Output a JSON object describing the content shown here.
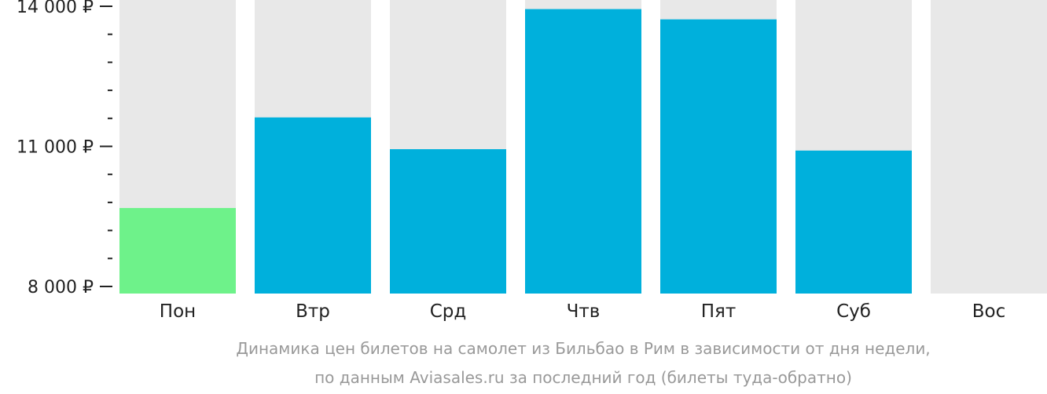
{
  "chart_data": {
    "type": "bar",
    "categories": [
      "Пон",
      "Втр",
      "Срд",
      "Чтв",
      "Пят",
      "Суб",
      "Вос"
    ],
    "values": [
      9680,
      11620,
      10940,
      13940,
      13720,
      10910,
      null
    ],
    "highlight_index": 0,
    "ylim": [
      8000,
      14000
    ],
    "major_ticks": [
      8000,
      11000,
      14000
    ],
    "minor_ticks": [
      8600,
      9200,
      9800,
      10400,
      11600,
      12200,
      12800,
      13400
    ],
    "tick_labels": [
      "8 000 ₽",
      "11 000 ₽",
      "14 000 ₽"
    ],
    "caption_lines": [
      "Динамика цен билетов на самолет из Бильбао в Рим в зависимости от дня недели,",
      "по данным Aviasales.ru за последний год (билеты туда-обратно)"
    ],
    "colors": {
      "bar": "#00b0dc",
      "highlight": "#6ef28a",
      "track": "#e8e8e8",
      "axis": "#222222",
      "caption": "#999999"
    },
    "grid": false,
    "legend": "none"
  }
}
